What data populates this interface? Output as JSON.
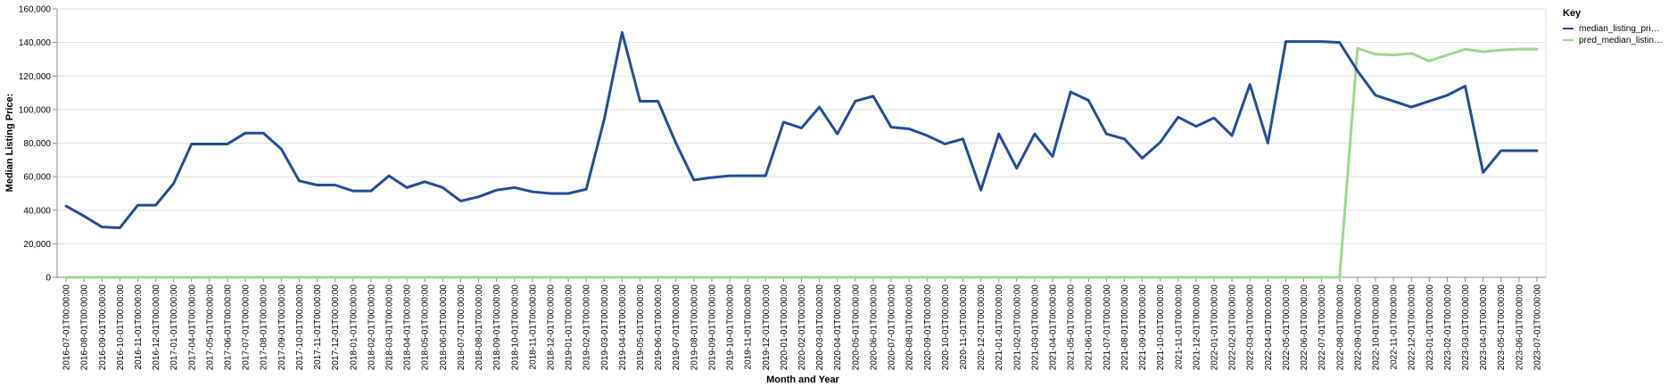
{
  "chart_data": {
    "type": "line",
    "xlabel": "Month and Year",
    "ylabel": "Median Listing Price:",
    "ylim": [
      0,
      160000
    ],
    "y_ticks": [
      "0",
      "20,000",
      "40,000",
      "60,000",
      "80,000",
      "100,000",
      "120,000",
      "140,000",
      "160,000"
    ],
    "grid": true,
    "legend": {
      "title": "Key",
      "position": "top-right",
      "entries": [
        "median_listing_pri…",
        "pred_median_listin…"
      ]
    },
    "x": [
      "2016-07-01T00:00:00",
      "2016-08-01T00:00:00",
      "2016-09-01T00:00:00",
      "2016-10-01T00:00:00",
      "2016-11-01T00:00:00",
      "2016-12-01T00:00:00",
      "2017-01-01T00:00:00",
      "2017-04-01T00:00:00",
      "2017-05-01T00:00:00",
      "2017-06-01T00:00:00",
      "2017-07-01T00:00:00",
      "2017-08-01T00:00:00",
      "2017-09-01T00:00:00",
      "2017-10-01T00:00:00",
      "2017-11-01T00:00:00",
      "2017-12-01T00:00:00",
      "2018-01-01T00:00:00",
      "2018-02-01T00:00:00",
      "2018-03-01T00:00:00",
      "2018-04-01T00:00:00",
      "2018-05-01T00:00:00",
      "2018-06-01T00:00:00",
      "2018-07-01T00:00:00",
      "2018-08-01T00:00:00",
      "2018-09-01T00:00:00",
      "2018-10-01T00:00:00",
      "2018-11-01T00:00:00",
      "2018-12-01T00:00:00",
      "2019-01-01T00:00:00",
      "2019-02-01T00:00:00",
      "2019-03-01T00:00:00",
      "2019-04-01T00:00:00",
      "2019-05-01T00:00:00",
      "2019-06-01T00:00:00",
      "2019-07-01T00:00:00",
      "2019-08-01T00:00:00",
      "2019-09-01T00:00:00",
      "2019-10-01T00:00:00",
      "2019-11-01T00:00:00",
      "2019-12-01T00:00:00",
      "2020-01-01T00:00:00",
      "2020-02-01T00:00:00",
      "2020-03-01T00:00:00",
      "2020-04-01T00:00:00",
      "2020-05-01T00:00:00",
      "2020-06-01T00:00:00",
      "2020-07-01T00:00:00",
      "2020-08-01T00:00:00",
      "2020-09-01T00:00:00",
      "2020-10-01T00:00:00",
      "2020-11-01T00:00:00",
      "2020-12-01T00:00:00",
      "2021-01-01T00:00:00",
      "2021-02-01T00:00:00",
      "2021-03-01T00:00:00",
      "2021-04-01T00:00:00",
      "2021-05-01T00:00:00",
      "2021-06-01T00:00:00",
      "2021-07-01T00:00:00",
      "2021-08-01T00:00:00",
      "2021-09-01T00:00:00",
      "2021-10-01T00:00:00",
      "2021-11-01T00:00:00",
      "2021-12-01T00:00:00",
      "2022-01-01T00:00:00",
      "2022-02-01T00:00:00",
      "2022-03-01T00:00:00",
      "2022-04-01T00:00:00",
      "2022-05-01T00:00:00",
      "2022-06-01T00:00:00",
      "2022-07-01T00:00:00",
      "2022-08-01T00:00:00",
      "2022-09-01T00:00:00",
      "2022-10-01T00:00:00",
      "2022-11-01T00:00:00",
      "2022-12-01T00:00:00",
      "2023-01-01T00:00:00",
      "2023-02-01T00:00:00",
      "2023-03-01T00:00:00",
      "2023-04-01T00:00:00",
      "2023-05-01T00:00:00",
      "2023-06-01T00:00:00",
      "2023-07-01T00:00:00"
    ],
    "series": [
      {
        "name": "median_listing_pri…",
        "color": "#1f4e99",
        "values": [
          42500,
          36500,
          30000,
          29500,
          43000,
          43000,
          56000,
          79500,
          79500,
          79500,
          86000,
          86000,
          76500,
          57500,
          55000,
          55000,
          51500,
          51500,
          60500,
          53500,
          57000,
          53500,
          45500,
          48000,
          52000,
          53500,
          51000,
          50000,
          50000,
          52500,
          94000,
          146000,
          105000,
          105000,
          80000,
          58000,
          59500,
          60500,
          60500,
          60500,
          92500,
          89000,
          101500,
          85500,
          105000,
          108000,
          89500,
          88500,
          84500,
          79500,
          82500,
          52000,
          85500,
          65000,
          85500,
          72000,
          110500,
          105500,
          85500,
          82500,
          71000,
          80500,
          95500,
          90000,
          95000,
          84500,
          115000,
          80000,
          140500,
          140500,
          140500,
          140000,
          123000,
          108500,
          105000,
          101500,
          105000,
          108500,
          114000,
          62500,
          75500,
          75500,
          75500
        ]
      },
      {
        "name": "pred_median_listin…",
        "color": "#9bd88e",
        "values": [
          0,
          0,
          0,
          0,
          0,
          0,
          0,
          0,
          0,
          0,
          0,
          0,
          0,
          0,
          0,
          0,
          0,
          0,
          0,
          0,
          0,
          0,
          0,
          0,
          0,
          0,
          0,
          0,
          0,
          0,
          0,
          0,
          0,
          0,
          0,
          0,
          0,
          0,
          0,
          0,
          0,
          0,
          0,
          0,
          0,
          0,
          0,
          0,
          0,
          0,
          0,
          0,
          0,
          0,
          0,
          0,
          0,
          0,
          0,
          0,
          0,
          0,
          0,
          0,
          0,
          0,
          0,
          0,
          0,
          0,
          0,
          0,
          136500,
          133000,
          132500,
          133500,
          129000,
          132500,
          136000,
          134500,
          135500,
          136000,
          136000
        ]
      }
    ]
  }
}
